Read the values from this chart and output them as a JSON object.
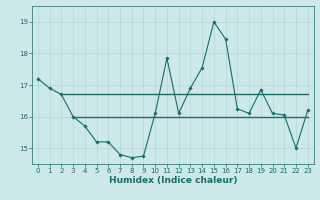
{
  "xlabel": "Humidex (Indice chaleur)",
  "ylabel": "",
  "background_color": "#cce8e8",
  "grid_color": "#b0d8d8",
  "line_color": "#1a6b6b",
  "xlim": [
    -0.5,
    23.5
  ],
  "ylim": [
    14.5,
    19.5
  ],
  "yticks": [
    15,
    16,
    17,
    18,
    19
  ],
  "xticks": [
    0,
    1,
    2,
    3,
    4,
    5,
    6,
    7,
    8,
    9,
    10,
    11,
    12,
    13,
    14,
    15,
    16,
    17,
    18,
    19,
    20,
    21,
    22,
    23
  ],
  "x": [
    0,
    1,
    2,
    3,
    4,
    5,
    6,
    7,
    8,
    9,
    10,
    11,
    12,
    13,
    14,
    15,
    16,
    17,
    18,
    19,
    20,
    21,
    22,
    23
  ],
  "y_main": [
    17.2,
    16.9,
    16.7,
    16.0,
    15.7,
    15.2,
    15.2,
    14.8,
    14.7,
    14.75,
    16.1,
    17.85,
    16.1,
    16.9,
    17.55,
    19.0,
    18.45,
    16.25,
    16.1,
    16.85,
    16.1,
    16.05,
    15.0,
    16.2
  ],
  "y_line1_x": [
    2,
    23
  ],
  "y_line1_y": [
    16.72,
    16.72
  ],
  "y_line2_x": [
    3,
    23
  ],
  "y_line2_y": [
    16.0,
    16.0
  ],
  "axis_fontsize": 5.5,
  "tick_fontsize": 5.0,
  "xlabel_fontsize": 6.5
}
